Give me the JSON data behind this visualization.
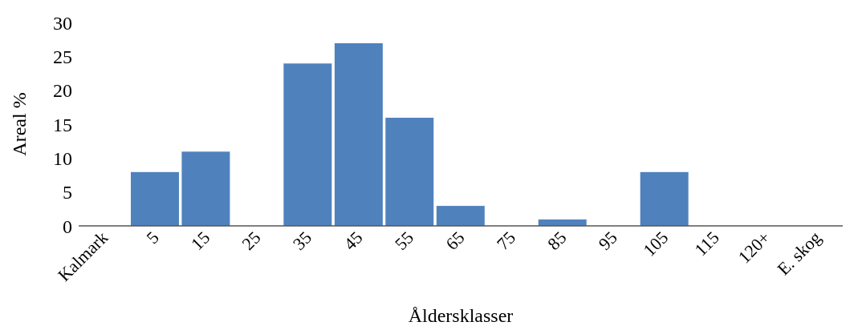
{
  "chart_data": {
    "type": "bar",
    "xlabel": "Åldersklasser",
    "ylabel": "Areal %",
    "categories": [
      "Kalmark",
      "5",
      "15",
      "25",
      "35",
      "45",
      "55",
      "65",
      "75",
      "85",
      "95",
      "105",
      "115",
      "120+",
      "E. skog"
    ],
    "values": [
      0,
      8,
      11,
      0,
      24,
      27,
      16,
      3,
      0,
      1,
      0,
      8,
      0,
      0,
      0
    ],
    "color": "#4f81bd",
    "ylim": [
      0,
      30
    ],
    "yticks": [
      0,
      5,
      10,
      15,
      20,
      25,
      30
    ],
    "grid": false,
    "legend": false
  }
}
